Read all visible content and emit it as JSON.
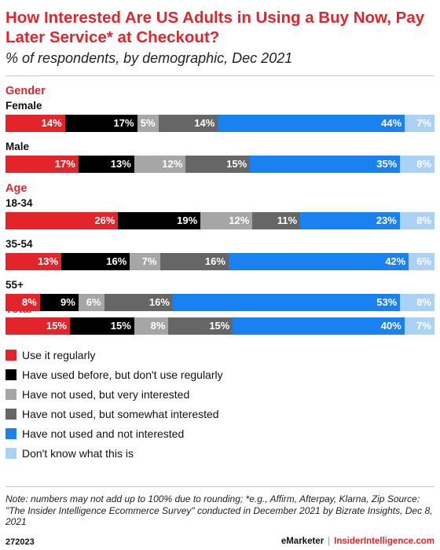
{
  "chart_data": {
    "type": "bar",
    "stacked": true,
    "orientation": "horizontal",
    "title": "How Interested Are US Adults in Using a Buy Now, Pay Later Service* at Checkout?",
    "subtitle": "% of respondents, by demographic, Dec 2021",
    "xlim": [
      0,
      100
    ],
    "groups": [
      {
        "label": "Gender",
        "rows": [
          {
            "label": "Female",
            "values": [
              14,
              17,
              5,
              14,
              44,
              7
            ]
          },
          {
            "label": "Male",
            "values": [
              17,
              13,
              12,
              15,
              35,
              8
            ]
          }
        ]
      },
      {
        "label": "Age",
        "rows": [
          {
            "label": "18-34",
            "values": [
              26,
              19,
              12,
              11,
              23,
              8
            ]
          },
          {
            "label": "35-54",
            "values": [
              13,
              16,
              7,
              16,
              42,
              6
            ]
          },
          {
            "label": "55+",
            "values": [
              8,
              9,
              6,
              16,
              53,
              8
            ]
          }
        ]
      },
      {
        "label": "Total",
        "rows": [
          {
            "label": "",
            "values": [
              15,
              15,
              8,
              15,
              40,
              7
            ]
          }
        ]
      }
    ],
    "series": [
      {
        "name": "Use it regularly",
        "color": "#e3242b",
        "label_color": "#ffffff"
      },
      {
        "name": "Have used before, but don't use regularly",
        "color": "#000000",
        "label_color": "#ffffff"
      },
      {
        "name": "Have not used, but very interested",
        "color": "#a6a6a6",
        "label_color": "#ffffff"
      },
      {
        "name": "Have not used, but somewhat interested",
        "color": "#666666",
        "label_color": "#ffffff"
      },
      {
        "name": "Have not used and not interested",
        "color": "#1a82f0",
        "label_color": "#ffffff"
      },
      {
        "name": "Don't know what this is",
        "color": "#a9d2f5",
        "label_color": "#ffffff"
      }
    ],
    "legend_position": "bottom"
  },
  "note": "Note: numbers may not add up to 100% due to rounding; *e.g., Affirm, Afterpay, Klarna, Zip Source: \"The Insider Intelligence Ecommerce Survey\" conducted in December 2021 by Bizrate Insights, Dec 8, 2021",
  "footer": {
    "chart_id": "272023",
    "brand_left": "eMarketer",
    "separator": "|",
    "brand_right": "InsiderIntelligence.com"
  }
}
